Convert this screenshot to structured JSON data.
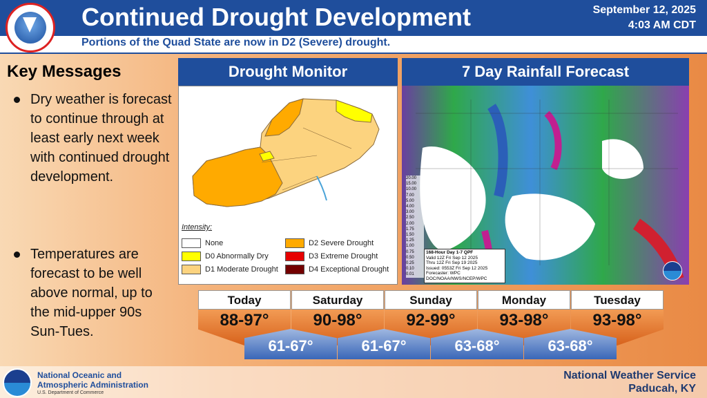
{
  "header": {
    "title": "Continued Drought Development",
    "date": "September 12, 2025",
    "time": "4:03 AM CDT",
    "subtitle": "Portions of the Quad State are now in D2 (Severe) drought."
  },
  "key_messages": {
    "title": "Key Messages",
    "bullets": [
      "Dry weather is forecast to continue through at least early next week with continued drought development.",
      "Temperatures are forecast to be well above normal, up to the mid-upper 90s Sun-Tues."
    ]
  },
  "drought_monitor": {
    "title": "Drought Monitor",
    "legend_title": "Intensity:",
    "legend": [
      {
        "label": "None",
        "color": "#ffffff"
      },
      {
        "label": "D0 Abnormally Dry",
        "color": "#ffff00"
      },
      {
        "label": "D1 Moderate Drought",
        "color": "#fcd37f"
      },
      {
        "label": "D2 Severe Drought",
        "color": "#ffaa00"
      },
      {
        "label": "D3 Extreme Drought",
        "color": "#e60000"
      },
      {
        "label": "D4 Exceptional Drought",
        "color": "#730000"
      }
    ]
  },
  "rainfall": {
    "title": "7 Day Rainfall Forecast",
    "scale": [
      "20.00",
      "15.00",
      "10.00",
      "7.00",
      "5.00",
      "4.00",
      "3.00",
      "2.50",
      "2.00",
      "1.75",
      "1.50",
      "1.25",
      "1.00",
      "0.75",
      "0.50",
      "0.25",
      "0.10",
      "0.01"
    ],
    "info_lines": [
      "168-Hour Day 1-7 QPF",
      "Valid 12Z Fri Sep 12 2025",
      "Thru 12Z Fri Sep 19 2025",
      "Issued: 0553Z Fri Sep 12 2025",
      "Forecaster: WPC",
      "DOC/NOAA/NWS/NCEP/WPC"
    ]
  },
  "forecast": {
    "days": [
      {
        "day": "Today",
        "high": "88-97°"
      },
      {
        "day": "Saturday",
        "high": "90-98°"
      },
      {
        "day": "Sunday",
        "high": "92-99°"
      },
      {
        "day": "Monday",
        "high": "93-98°"
      },
      {
        "day": "Tuesday",
        "high": "93-98°"
      }
    ],
    "lows": [
      "61-67°",
      "61-67°",
      "63-68°",
      "63-68°"
    ]
  },
  "footer": {
    "noaa_line1": "National Oceanic and",
    "noaa_line2": "Atmospheric Administration",
    "noaa_sub": "U.S. Department of Commerce",
    "office_line1": "National Weather Service",
    "office_line2": "Paducah, KY"
  },
  "colors": {
    "accent": "#1f4e9c",
    "high_temp": "#e07a30",
    "low_temp": "#4a73bd"
  }
}
